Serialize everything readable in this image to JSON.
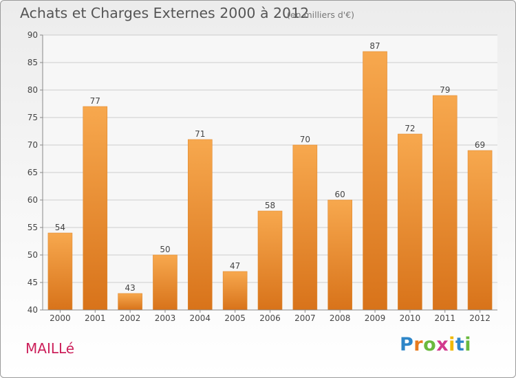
{
  "chart_data": {
    "type": "bar",
    "title": "Achats et Charges Externes 2000 à 2012",
    "subtitle": "(en milliers d'€)",
    "categories": [
      "2000",
      "2001",
      "2002",
      "2003",
      "2004",
      "2005",
      "2006",
      "2007",
      "2008",
      "2009",
      "2010",
      "2011",
      "2012"
    ],
    "values": [
      54,
      77,
      43,
      50,
      71,
      47,
      58,
      70,
      60,
      87,
      72,
      79,
      69
    ],
    "ylim": [
      40,
      90
    ],
    "yticks": [
      40,
      45,
      50,
      55,
      60,
      65,
      70,
      75,
      80,
      85,
      90
    ],
    "grid": true,
    "bar_color_light": "#f7a84e",
    "bar_color_dark": "#d8731a",
    "grid_color": "#cccccc"
  },
  "commune": "MAILLé",
  "logo": {
    "letters": [
      "P",
      "r",
      "o",
      "x",
      "i",
      "t",
      "i"
    ],
    "colors": [
      "#2e86c8",
      "#e87a1e",
      "#6ab93e",
      "#d23a8e",
      "#f0b800",
      "#2e86c8",
      "#6ab93e"
    ]
  }
}
